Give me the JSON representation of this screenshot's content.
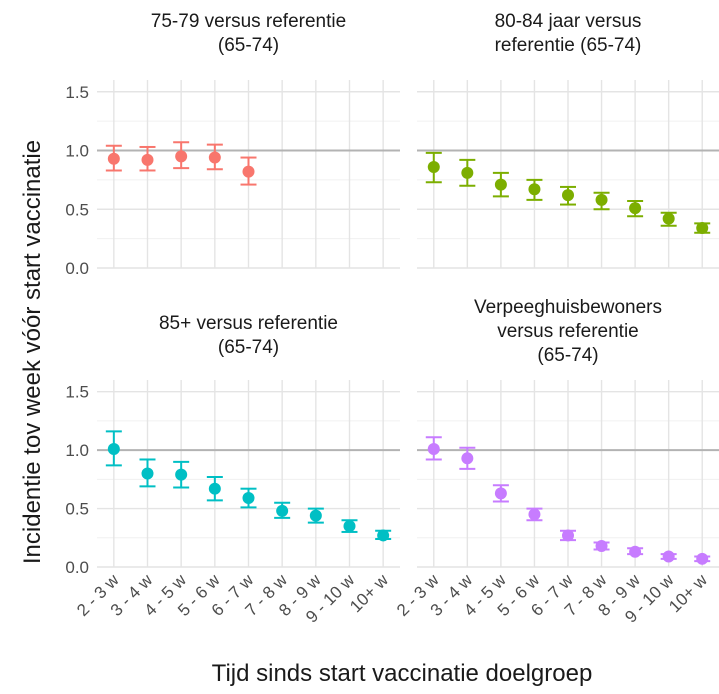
{
  "chart_data": {
    "type": "scatter",
    "subtype": "point-errorbar-facets",
    "xlabel": "Tijd sinds start vaccinatie doelgroep",
    "ylabel": "Incidentie tov week vóór start vaccinatie",
    "categories": [
      "2 - 3 w",
      "3 - 4 w",
      "4 - 5 w",
      "5 - 6 w",
      "6 - 7 w",
      "7 - 8 w",
      "8 - 9 w",
      "9 - 10 w",
      "10+ w"
    ],
    "ylim": [
      0,
      1.6
    ],
    "yticks": [
      "0.0",
      "0.5",
      "1.0",
      "1.5"
    ],
    "reference_line": 1.0,
    "grid": true,
    "panels": [
      {
        "title_lines": [
          "75-79 versus referentie",
          "(65-74)"
        ],
        "color": "#F8766D",
        "points": [
          {
            "x": "2 - 3 w",
            "y": 0.93,
            "lo": 0.83,
            "hi": 1.04
          },
          {
            "x": "3 - 4 w",
            "y": 0.92,
            "lo": 0.83,
            "hi": 1.03
          },
          {
            "x": "4 - 5 w",
            "y": 0.95,
            "lo": 0.85,
            "hi": 1.07
          },
          {
            "x": "5 - 6 w",
            "y": 0.94,
            "lo": 0.84,
            "hi": 1.05
          },
          {
            "x": "6 - 7 w",
            "y": 0.82,
            "lo": 0.71,
            "hi": 0.94
          }
        ]
      },
      {
        "title_lines": [
          "80-84 jaar versus",
          "referentie (65-74)"
        ],
        "color": "#7CAE00",
        "points": [
          {
            "x": "2 - 3 w",
            "y": 0.86,
            "lo": 0.73,
            "hi": 0.98
          },
          {
            "x": "3 - 4 w",
            "y": 0.81,
            "lo": 0.7,
            "hi": 0.92
          },
          {
            "x": "4 - 5 w",
            "y": 0.71,
            "lo": 0.61,
            "hi": 0.81
          },
          {
            "x": "5 - 6 w",
            "y": 0.67,
            "lo": 0.58,
            "hi": 0.75
          },
          {
            "x": "6 - 7 w",
            "y": 0.62,
            "lo": 0.54,
            "hi": 0.69
          },
          {
            "x": "7 - 8 w",
            "y": 0.58,
            "lo": 0.5,
            "hi": 0.64
          },
          {
            "x": "8 - 9 w",
            "y": 0.51,
            "lo": 0.44,
            "hi": 0.57
          },
          {
            "x": "9 - 10 w",
            "y": 0.42,
            "lo": 0.36,
            "hi": 0.47
          },
          {
            "x": "10+ w",
            "y": 0.34,
            "lo": 0.3,
            "hi": 0.38
          }
        ]
      },
      {
        "title_lines": [
          "85+ versus referentie",
          "(65-74)"
        ],
        "color": "#00BFC4",
        "points": [
          {
            "x": "2 - 3 w",
            "y": 1.01,
            "lo": 0.87,
            "hi": 1.16
          },
          {
            "x": "3 - 4 w",
            "y": 0.8,
            "lo": 0.69,
            "hi": 0.92
          },
          {
            "x": "4 - 5 w",
            "y": 0.79,
            "lo": 0.68,
            "hi": 0.9
          },
          {
            "x": "5 - 6 w",
            "y": 0.67,
            "lo": 0.57,
            "hi": 0.77
          },
          {
            "x": "6 - 7 w",
            "y": 0.59,
            "lo": 0.51,
            "hi": 0.67
          },
          {
            "x": "7 - 8 w",
            "y": 0.48,
            "lo": 0.42,
            "hi": 0.55
          },
          {
            "x": "8 - 9 w",
            "y": 0.44,
            "lo": 0.38,
            "hi": 0.5
          },
          {
            "x": "9 - 10 w",
            "y": 0.35,
            "lo": 0.3,
            "hi": 0.4
          },
          {
            "x": "10+ w",
            "y": 0.27,
            "lo": 0.24,
            "hi": 0.31
          }
        ]
      },
      {
        "title_lines": [
          "Verpeeghuisbewoners",
          "versus referentie",
          "(65-74)"
        ],
        "color": "#C77CFF",
        "points": [
          {
            "x": "2 - 3 w",
            "y": 1.01,
            "lo": 0.92,
            "hi": 1.11
          },
          {
            "x": "3 - 4 w",
            "y": 0.93,
            "lo": 0.84,
            "hi": 1.02
          },
          {
            "x": "4 - 5 w",
            "y": 0.63,
            "lo": 0.56,
            "hi": 0.7
          },
          {
            "x": "5 - 6 w",
            "y": 0.45,
            "lo": 0.4,
            "hi": 0.5
          },
          {
            "x": "6 - 7 w",
            "y": 0.27,
            "lo": 0.23,
            "hi": 0.31
          },
          {
            "x": "7 - 8 w",
            "y": 0.18,
            "lo": 0.15,
            "hi": 0.21
          },
          {
            "x": "8 - 9 w",
            "y": 0.13,
            "lo": 0.11,
            "hi": 0.16
          },
          {
            "x": "9 - 10 w",
            "y": 0.09,
            "lo": 0.07,
            "hi": 0.11
          },
          {
            "x": "10+ w",
            "y": 0.07,
            "lo": 0.05,
            "hi": 0.09
          }
        ]
      }
    ]
  }
}
